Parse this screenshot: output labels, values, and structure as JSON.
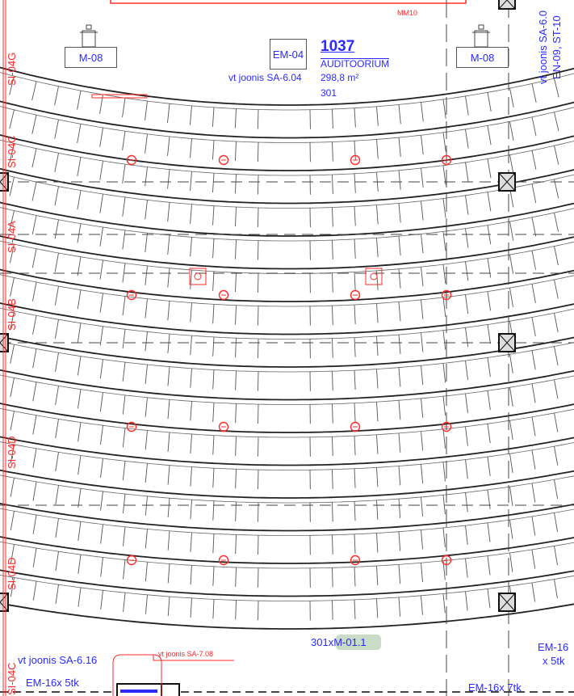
{
  "room": {
    "number": "1037",
    "name": "AUDITOORIUM",
    "area": "298,8 m²",
    "seats": "301"
  },
  "top_labels": {
    "mm": "MM10",
    "em04": "EM-04",
    "m08_left": "M-08",
    "m08_right": "M-08",
    "ref_left": "vt joonis SA-6.04"
  },
  "right_vertical": {
    "line1": "vt joonis SA-6.0",
    "line2": "EN-09, ST-10"
  },
  "left_labels": [
    "SI-04G",
    "SI-04C",
    "SI-04A",
    "SI-04B",
    "SI-04D",
    "SI-04D",
    "SI-04C"
  ],
  "bottom": {
    "seat_tag": "301xM-01.1",
    "ref_sa616": "vt joonis SA-6.16",
    "ref_sa708": "vt joonis SA-7.08",
    "em16_left": "EM-16x 5tk",
    "em16_right_1": "EM-16",
    "em16_right_2": "x 5tk",
    "em16_bottom": "EM-16x 7tk"
  },
  "colors": {
    "text": "#2a2aff",
    "annotation": "#ff2a2a",
    "lines": "#222222",
    "tag_bg": "#c8dcc8"
  }
}
